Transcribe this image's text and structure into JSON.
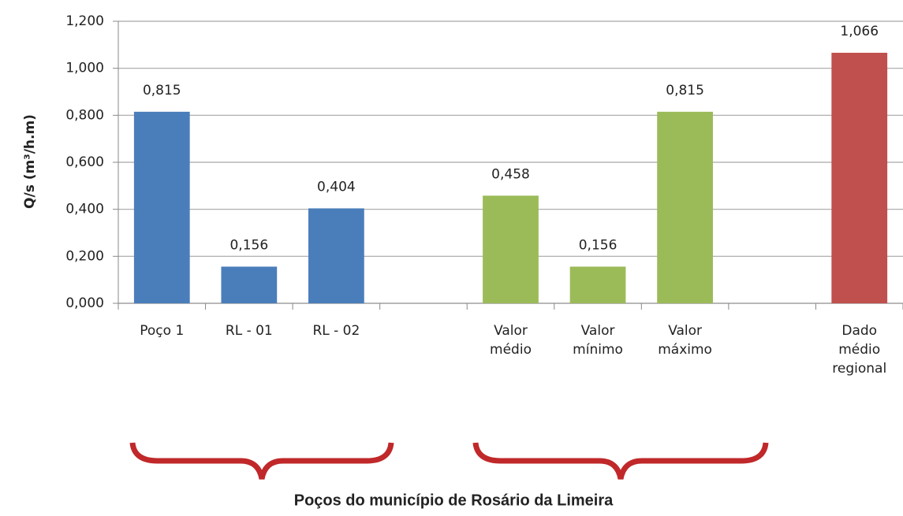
{
  "chart_data": {
    "type": "bar",
    "y_label": "Q/s (m³/h.m)",
    "annotation": "Poços do município  de Rosário da Limeira",
    "categories": [
      "Poço 1",
      "RL - 01",
      "RL - 02",
      null,
      "Valor médio",
      "Valor mínimo",
      "Valor máximo",
      null,
      "Dado médio regional"
    ],
    "values": [
      0.815,
      0.156,
      0.404,
      null,
      0.458,
      0.156,
      0.815,
      null,
      1.066
    ],
    "value_labels": [
      "0,815",
      "0,156",
      "0,404",
      null,
      "0,458",
      "0,156",
      "0,815",
      null,
      "1,066"
    ],
    "colors": [
      "#4a7ebb",
      "#4a7ebb",
      "#4a7ebb",
      null,
      "#9bbb59",
      "#9bbb59",
      "#9bbb59",
      null,
      "#c0504d"
    ],
    "ylim": [
      0,
      1.2
    ],
    "yticks": [
      {
        "value": 0,
        "label": "0,000"
      },
      {
        "value": 0.2,
        "label": "0,200"
      },
      {
        "value": 0.4,
        "label": "0,400"
      },
      {
        "value": 0.6,
        "label": "0,600"
      },
      {
        "value": 0.8,
        "label": "0,800"
      },
      {
        "value": 1.0,
        "label": "1,000"
      },
      {
        "value": 1.2,
        "label": "1,200"
      }
    ],
    "grid": true
  }
}
